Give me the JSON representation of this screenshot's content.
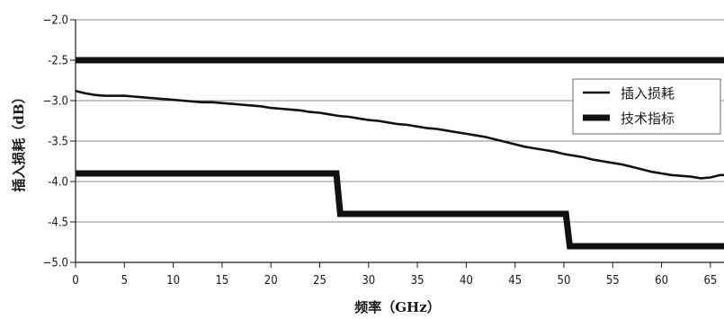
{
  "chart_data": {
    "type": "line",
    "xlabel": "频率（GHz）",
    "ylabel": "插入损耗（dB）",
    "xlim": [
      0,
      67
    ],
    "ylim": [
      -5.0,
      -2.0
    ],
    "x_ticks": [
      0,
      5,
      10,
      15,
      20,
      25,
      30,
      35,
      40,
      45,
      50,
      55,
      60,
      65
    ],
    "y_ticks": [
      -2.0,
      -2.5,
      -3.0,
      -3.5,
      -4.0,
      -4.5,
      -5.0
    ],
    "y_tick_labels": [
      "−2.0",
      "-2.5",
      "−3.0",
      "-3.5",
      "-4.0",
      "-4.5",
      "−5.0"
    ],
    "grid": "horizontal",
    "legend_position": "right",
    "series": [
      {
        "name": "插入损耗",
        "style": "thin",
        "x": [
          0,
          1,
          2,
          3,
          4,
          5,
          6,
          7,
          8,
          9,
          10,
          11,
          12,
          13,
          14,
          15,
          16,
          17,
          18,
          19,
          20,
          21,
          22,
          23,
          24,
          25,
          26,
          27,
          28,
          29,
          30,
          31,
          32,
          33,
          34,
          35,
          36,
          37,
          38,
          39,
          40,
          41,
          42,
          43,
          44,
          45,
          46,
          47,
          48,
          49,
          50,
          51,
          52,
          53,
          54,
          55,
          56,
          57,
          58,
          59,
          60,
          61,
          62,
          63,
          64,
          65,
          66,
          67
        ],
        "y": [
          -2.88,
          -2.91,
          -2.93,
          -2.94,
          -2.94,
          -2.94,
          -2.95,
          -2.96,
          -2.97,
          -2.98,
          -2.99,
          -3.0,
          -3.01,
          -3.02,
          -3.02,
          -3.03,
          -3.04,
          -3.05,
          -3.06,
          -3.07,
          -3.09,
          -3.1,
          -3.11,
          -3.12,
          -3.14,
          -3.15,
          -3.17,
          -3.19,
          -3.2,
          -3.22,
          -3.24,
          -3.25,
          -3.27,
          -3.29,
          -3.3,
          -3.32,
          -3.34,
          -3.35,
          -3.37,
          -3.39,
          -3.41,
          -3.43,
          -3.45,
          -3.48,
          -3.51,
          -3.54,
          -3.57,
          -3.59,
          -3.61,
          -3.63,
          -3.66,
          -3.68,
          -3.7,
          -3.73,
          -3.75,
          -3.77,
          -3.79,
          -3.82,
          -3.85,
          -3.88,
          -3.9,
          -3.92,
          -3.93,
          -3.94,
          -3.96,
          -3.95,
          -3.92,
          -3.92
        ]
      },
      {
        "name": "技术指标",
        "style": "thick",
        "x": [
          0,
          26.7,
          27.1,
          50.2,
          50.6,
          67
        ],
        "y": [
          -3.9,
          -3.9,
          -4.4,
          -4.4,
          -4.8,
          -4.8
        ]
      },
      {
        "name": "技术指标",
        "style": "thick",
        "x": [
          0,
          67
        ],
        "y": [
          -2.5,
          -2.5
        ]
      }
    ],
    "legend": [
      {
        "label": "插入损耗",
        "style": "thin"
      },
      {
        "label": "技术指标",
        "style": "thick"
      }
    ]
  }
}
